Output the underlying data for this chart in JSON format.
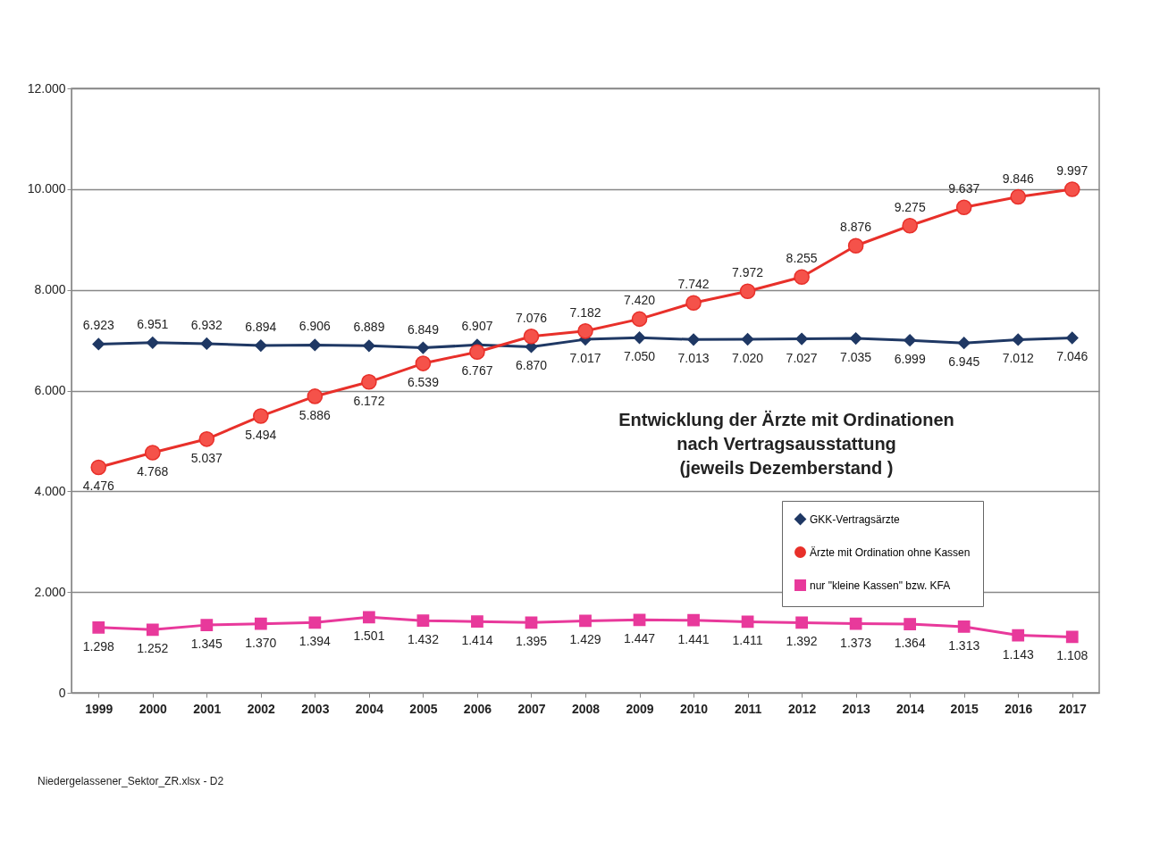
{
  "chart_data": {
    "type": "line",
    "title": "Entwicklung der Ärzte mit Ordinationen\nnach Vertragsausstattung\n(jeweils Dezemberstand )",
    "categories": [
      "1999",
      "2000",
      "2001",
      "2002",
      "2003",
      "2004",
      "2005",
      "2006",
      "2007",
      "2008",
      "2009",
      "2010",
      "2011",
      "2012",
      "2013",
      "2014",
      "2015",
      "2016",
      "2017"
    ],
    "series": [
      {
        "name": "GKK-Vertragsärzte",
        "color": "#1f3864",
        "marker": "diamond",
        "values": [
          6923,
          6951,
          6932,
          6894,
          6906,
          6889,
          6849,
          6907,
          6870,
          7017,
          7050,
          7013,
          7020,
          7027,
          7035,
          6999,
          6945,
          7012,
          7046
        ],
        "value_labels": [
          "6.923",
          "6.951",
          "6.932",
          "6.894",
          "6.906",
          "6.889",
          "6.849",
          "6.907",
          "6.870",
          "7.017",
          "7.050",
          "7.013",
          "7.020",
          "7.027",
          "7.035",
          "6.999",
          "6.945",
          "7.012",
          "7.046"
        ]
      },
      {
        "name": "Ärzte mit Ordination ohne Kassen",
        "color": "#e8302a",
        "marker": "circle",
        "values": [
          4476,
          4768,
          5037,
          5494,
          5886,
          6172,
          6539,
          6767,
          7076,
          7182,
          7420,
          7742,
          7972,
          8255,
          8876,
          9275,
          9637,
          9846,
          9997
        ],
        "value_labels": [
          "4.476",
          "4.768",
          "5.037",
          "5.494",
          "5.886",
          "6.172",
          "6.539",
          "6.767",
          "7.076",
          "7.182",
          "7.420",
          "7.742",
          "7.972",
          "8.255",
          "8.876",
          "9.275",
          "9.637",
          "9.846",
          "9.997"
        ]
      },
      {
        "name": "nur \"kleine Kassen\" bzw. KFA",
        "color": "#e8399b",
        "marker": "square",
        "values": [
          1298,
          1252,
          1345,
          1370,
          1394,
          1501,
          1432,
          1414,
          1395,
          1429,
          1447,
          1441,
          1411,
          1392,
          1373,
          1364,
          1313,
          1143,
          1108
        ],
        "value_labels": [
          "1.298",
          "1.252",
          "1.345",
          "1.370",
          "1.394",
          "1.501",
          "1.432",
          "1.414",
          "1.395",
          "1.429",
          "1.447",
          "1.441",
          "1.411",
          "1.392",
          "1.373",
          "1.364",
          "1.313",
          "1.143",
          "1.108"
        ]
      }
    ],
    "ylim": [
      0,
      12000
    ],
    "yticks": [
      {
        "value": 0,
        "label": "0"
      },
      {
        "value": 2000,
        "label": "2.000"
      },
      {
        "value": 4000,
        "label": "4.000"
      },
      {
        "value": 6000,
        "label": "6.000"
      },
      {
        "value": 8000,
        "label": "8.000"
      },
      {
        "value": 10000,
        "label": "10.000"
      },
      {
        "value": 12000,
        "label": "12.000"
      }
    ],
    "grid": "y",
    "legend": "right",
    "line_style": "solid",
    "annotations": [
      "Niedergelassener_Sektor_ZR.xlsx - D2"
    ]
  }
}
